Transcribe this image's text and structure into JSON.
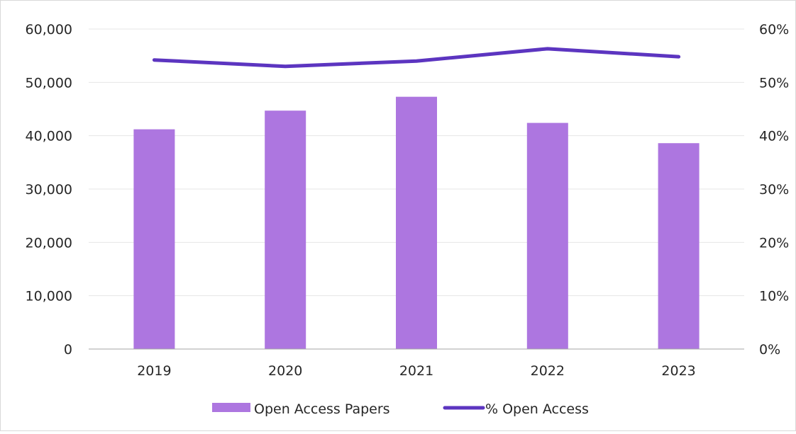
{
  "chart_data": {
    "type": "bar",
    "categories": [
      "2019",
      "2020",
      "2021",
      "2022",
      "2023"
    ],
    "series": [
      {
        "name": "Open Access Papers",
        "type": "bar",
        "axis": "left",
        "values": [
          41200,
          44700,
          47300,
          42400,
          38600
        ],
        "color": "#ad76e0"
      },
      {
        "name": "% Open Access",
        "type": "line",
        "axis": "right",
        "values": [
          54.2,
          53.0,
          54.0,
          56.3,
          54.8
        ],
        "color": "#5c35c0"
      }
    ],
    "y_left": {
      "ylim": [
        0,
        60000
      ],
      "ticks": [
        0,
        10000,
        20000,
        30000,
        40000,
        50000,
        60000
      ],
      "tick_labels": [
        "0",
        "10,000",
        "20,000",
        "30,000",
        "40,000",
        "50,000",
        "60,000"
      ]
    },
    "y_right": {
      "ylim": [
        0,
        60
      ],
      "ticks": [
        0,
        10,
        20,
        30,
        40,
        50,
        60
      ],
      "tick_labels": [
        "0%",
        "10%",
        "20%",
        "30%",
        "40%",
        "50%",
        "60%"
      ]
    },
    "title": "",
    "xlabel": "",
    "ylabel": "",
    "grid": true,
    "legend_position": "bottom"
  }
}
